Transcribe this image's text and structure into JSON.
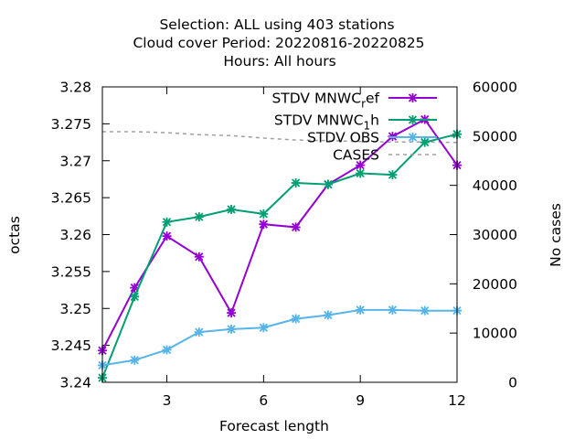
{
  "chart_data": {
    "type": "line",
    "title_lines": [
      "Selection: ALL using   403 stations",
      "Cloud cover   Period: 20220816-20220825",
      "Hours:  All hours"
    ],
    "xlabel": "Forecast length",
    "ylabel": "octas",
    "y2label": "No cases",
    "xlim": [
      1,
      12
    ],
    "ylim": [
      3.24,
      3.28
    ],
    "y2lim": [
      0,
      60000
    ],
    "xticks": [
      3,
      6,
      9,
      12
    ],
    "yticks": [
      3.24,
      3.245,
      3.25,
      3.255,
      3.26,
      3.265,
      3.27,
      3.275,
      3.28
    ],
    "yticks_labels": [
      "3.24",
      "3.245",
      "3.25",
      "3.255",
      "3.26",
      "3.265",
      "3.27",
      "3.275",
      "3.28"
    ],
    "y2ticks": [
      0,
      10000,
      20000,
      30000,
      40000,
      50000,
      60000
    ],
    "legend_position": "top-right",
    "x": [
      1,
      2,
      3,
      4,
      5,
      6,
      7,
      8,
      9,
      10,
      11,
      12
    ],
    "series": [
      {
        "name": "STDV MNWC_ref",
        "legend": {
          "base": "STDV MNWC",
          "sub": "r",
          "rest": "ef"
        },
        "color": "#9400d3",
        "axis": "y",
        "marker": "cross",
        "values": [
          3.2443,
          3.2528,
          3.2598,
          3.257,
          3.2494,
          3.2614,
          3.261,
          3.2668,
          3.2694,
          3.2733,
          3.2756,
          3.2694
        ]
      },
      {
        "name": "STDV MNWC_1h",
        "legend": {
          "base": "STDV MNWC",
          "sub": "1",
          "rest": "h"
        },
        "color": "#009e73",
        "axis": "y",
        "marker": "cross",
        "values": [
          3.2406,
          3.2516,
          3.2617,
          3.2624,
          3.2634,
          3.2628,
          3.267,
          3.2668,
          3.2683,
          3.2681,
          3.2725,
          3.2736
        ]
      },
      {
        "name": "STDV OBS",
        "legend": {
          "base": "STDV OBS",
          "sub": "",
          "rest": ""
        },
        "color": "#56b4e9",
        "axis": "y",
        "marker": "cross",
        "values": [
          3.2423,
          3.243,
          3.2444,
          3.2468,
          3.2472,
          3.2474,
          3.2486,
          3.2491,
          3.2498,
          3.2498,
          3.2497,
          3.2497
        ]
      },
      {
        "name": "CASES",
        "legend": {
          "base": "CASES",
          "sub": "",
          "rest": ""
        },
        "color": "#a0a0a0",
        "axis": "y2",
        "dashed": true,
        "values": [
          50900,
          50900,
          50700,
          50300,
          50100,
          49600,
          49200,
          49100,
          48900,
          48800,
          48800,
          48700
        ]
      }
    ]
  }
}
